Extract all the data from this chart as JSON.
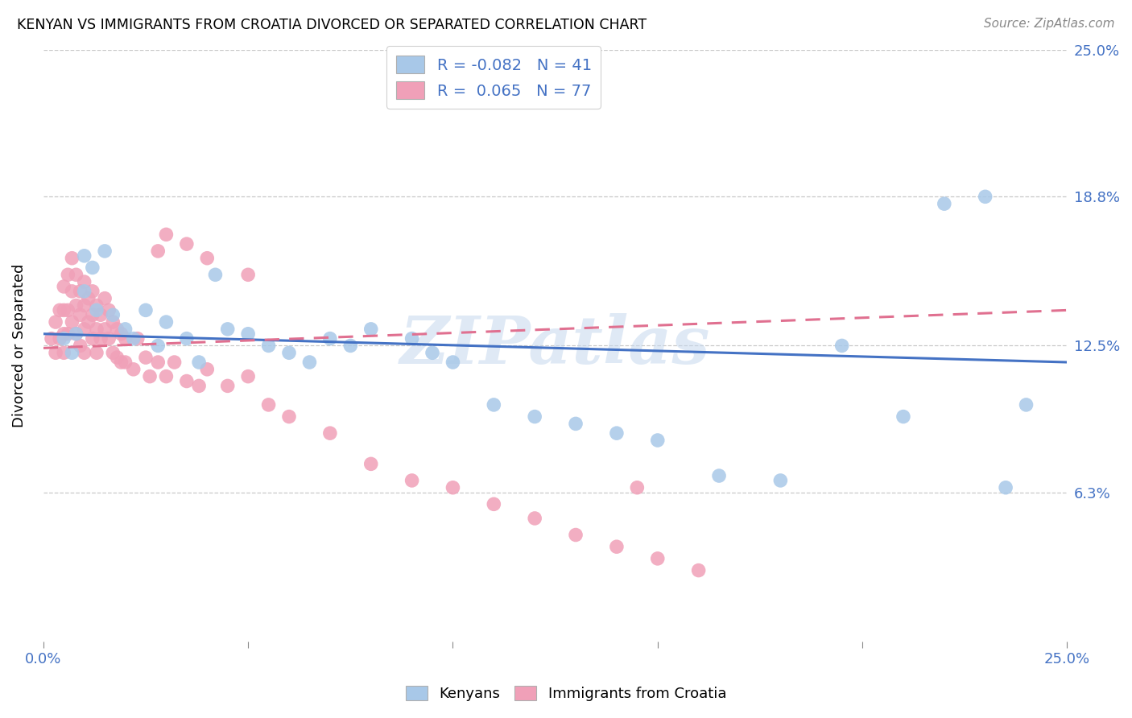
{
  "title": "KENYAN VS IMMIGRANTS FROM CROATIA DIVORCED OR SEPARATED CORRELATION CHART",
  "source": "Source: ZipAtlas.com",
  "ylabel": "Divorced or Separated",
  "legend_label1": "Kenyans",
  "legend_label2": "Immigrants from Croatia",
  "R1": -0.082,
  "N1": 41,
  "R2": 0.065,
  "N2": 77,
  "color1": "#a8c8e8",
  "color2": "#f0a0b8",
  "line1_color": "#4472c4",
  "line2_color": "#e07090",
  "xmin": 0.0,
  "xmax": 0.25,
  "ymin": 0.0,
  "ymax": 0.25,
  "ytick_vals": [
    0.063,
    0.125,
    0.188,
    0.25
  ],
  "ytick_labels": [
    "6.3%",
    "12.5%",
    "18.8%",
    "25.0%"
  ],
  "watermark": "ZIPatlas",
  "line1_x0": 0.0,
  "line1_y0": 0.13,
  "line1_x1": 0.25,
  "line1_y1": 0.118,
  "line2_x0": 0.0,
  "line2_y0": 0.124,
  "line2_x1": 0.25,
  "line2_y1": 0.14,
  "blue_x": [
    0.005,
    0.007,
    0.008,
    0.01,
    0.01,
    0.012,
    0.013,
    0.015,
    0.017,
    0.02,
    0.022,
    0.025,
    0.028,
    0.03,
    0.035,
    0.038,
    0.042,
    0.045,
    0.05,
    0.055,
    0.06,
    0.065,
    0.07,
    0.075,
    0.08,
    0.09,
    0.095,
    0.1,
    0.11,
    0.12,
    0.13,
    0.14,
    0.15,
    0.165,
    0.18,
    0.195,
    0.21,
    0.22,
    0.23,
    0.235,
    0.24
  ],
  "blue_y": [
    0.128,
    0.122,
    0.13,
    0.163,
    0.148,
    0.158,
    0.14,
    0.165,
    0.138,
    0.132,
    0.128,
    0.14,
    0.125,
    0.135,
    0.128,
    0.118,
    0.155,
    0.132,
    0.13,
    0.125,
    0.122,
    0.118,
    0.128,
    0.125,
    0.132,
    0.128,
    0.122,
    0.118,
    0.1,
    0.095,
    0.092,
    0.088,
    0.085,
    0.07,
    0.068,
    0.125,
    0.095,
    0.185,
    0.188,
    0.065,
    0.1
  ],
  "pink_x": [
    0.002,
    0.003,
    0.003,
    0.004,
    0.004,
    0.005,
    0.005,
    0.005,
    0.005,
    0.006,
    0.006,
    0.006,
    0.007,
    0.007,
    0.007,
    0.008,
    0.008,
    0.008,
    0.009,
    0.009,
    0.009,
    0.01,
    0.01,
    0.01,
    0.01,
    0.011,
    0.011,
    0.012,
    0.012,
    0.012,
    0.013,
    0.013,
    0.013,
    0.014,
    0.014,
    0.015,
    0.015,
    0.016,
    0.016,
    0.017,
    0.017,
    0.018,
    0.018,
    0.019,
    0.019,
    0.02,
    0.02,
    0.022,
    0.023,
    0.025,
    0.026,
    0.028,
    0.03,
    0.032,
    0.035,
    0.038,
    0.04,
    0.045,
    0.05,
    0.055,
    0.06,
    0.07,
    0.08,
    0.09,
    0.1,
    0.11,
    0.12,
    0.13,
    0.14,
    0.15,
    0.16,
    0.028,
    0.03,
    0.035,
    0.04,
    0.05,
    0.145
  ],
  "pink_y": [
    0.128,
    0.135,
    0.122,
    0.14,
    0.128,
    0.15,
    0.14,
    0.13,
    0.122,
    0.155,
    0.14,
    0.13,
    0.162,
    0.148,
    0.135,
    0.155,
    0.142,
    0.13,
    0.148,
    0.138,
    0.125,
    0.152,
    0.142,
    0.132,
    0.122,
    0.145,
    0.135,
    0.148,
    0.138,
    0.128,
    0.142,
    0.132,
    0.122,
    0.138,
    0.128,
    0.145,
    0.132,
    0.14,
    0.128,
    0.135,
    0.122,
    0.132,
    0.12,
    0.13,
    0.118,
    0.128,
    0.118,
    0.115,
    0.128,
    0.12,
    0.112,
    0.118,
    0.112,
    0.118,
    0.11,
    0.108,
    0.115,
    0.108,
    0.112,
    0.1,
    0.095,
    0.088,
    0.075,
    0.068,
    0.065,
    0.058,
    0.052,
    0.045,
    0.04,
    0.035,
    0.03,
    0.165,
    0.172,
    0.168,
    0.162,
    0.155,
    0.065
  ]
}
